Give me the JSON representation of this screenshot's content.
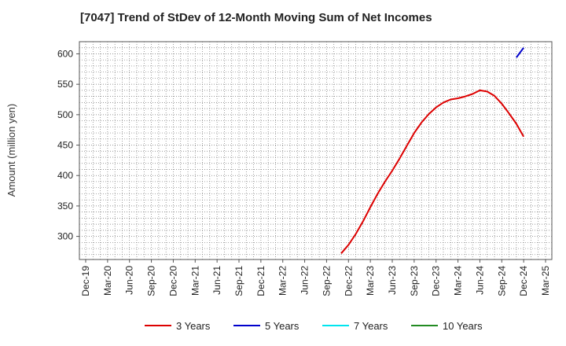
{
  "chart_data": {
    "type": "line",
    "title": "[7047]  Trend of StDev of 12-Month Moving Sum of Net Incomes",
    "ylabel": "Amount (million yen)",
    "xlabel": "",
    "ylim": [
      262,
      620
    ],
    "yticks": [
      300,
      350,
      400,
      450,
      500,
      550,
      600
    ],
    "xticks": [
      "Dec-19",
      "Mar-20",
      "Jun-20",
      "Sep-20",
      "Dec-20",
      "Mar-21",
      "Jun-21",
      "Sep-21",
      "Dec-21",
      "Mar-22",
      "Jun-22",
      "Sep-22",
      "Dec-22",
      "Mar-23",
      "Jun-23",
      "Sep-23",
      "Dec-23",
      "Mar-24",
      "Jun-24",
      "Sep-24",
      "Dec-24",
      "Mar-25"
    ],
    "grid": true,
    "legend_position": "bottom",
    "series": [
      {
        "name": "3 Years",
        "color": "#dd0000",
        "x": [
          "Nov-22",
          "Dec-22",
          "Jan-23",
          "Feb-23",
          "Mar-23",
          "Apr-23",
          "May-23",
          "Jun-23",
          "Jul-23",
          "Aug-23",
          "Sep-23",
          "Oct-23",
          "Nov-23",
          "Dec-23",
          "Jan-24",
          "Feb-24",
          "Mar-24",
          "Apr-24",
          "May-24",
          "Jun-24",
          "Jul-24",
          "Aug-24",
          "Sep-24",
          "Oct-24",
          "Nov-24",
          "Dec-24"
        ],
        "values": [
          272,
          286,
          304,
          325,
          348,
          370,
          390,
          408,
          428,
          449,
          470,
          487,
          501,
          512,
          520,
          525,
          527,
          530,
          534,
          540,
          538,
          531,
          518,
          502,
          485,
          464
        ]
      },
      {
        "name": "5 Years",
        "color": "#0000cc",
        "x": [
          "Nov-24",
          "Dec-24"
        ],
        "values": [
          594,
          610
        ]
      },
      {
        "name": "7 Years",
        "color": "#00e5ee",
        "x": [],
        "values": []
      },
      {
        "name": "10 Years",
        "color": "#228b22",
        "x": [],
        "values": []
      }
    ]
  }
}
